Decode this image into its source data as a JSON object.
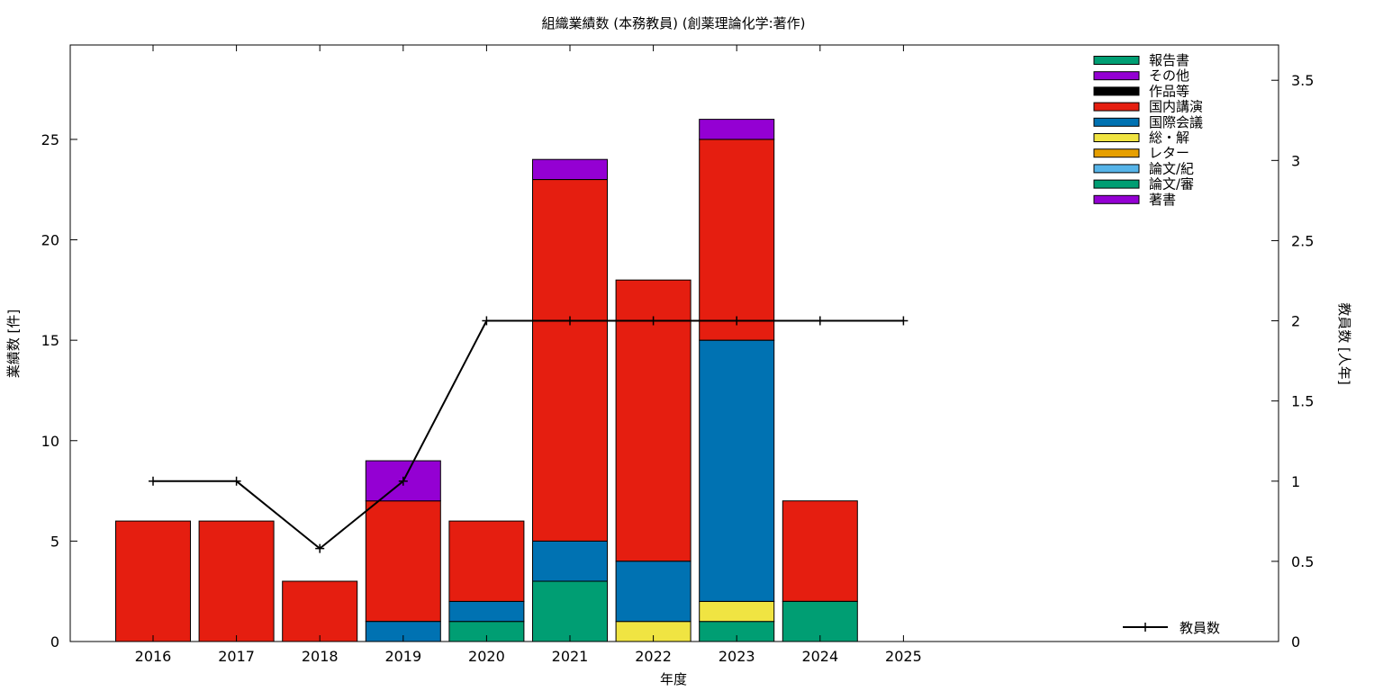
{
  "chart_data": {
    "type": "bar",
    "stacked": true,
    "title": "組織業績数 (本務教員) (創薬理論化学:著作)",
    "xlabel": "年度",
    "ylabel": "業績数 [件]",
    "y2label": "教員数 [人年]",
    "categories": [
      "2016",
      "2017",
      "2018",
      "2019",
      "2020",
      "2021",
      "2022",
      "2023",
      "2024",
      "2025"
    ],
    "ylim": [
      0,
      29.7
    ],
    "y_ticks": [
      0,
      5,
      10,
      15,
      20,
      25
    ],
    "y2lim": [
      0,
      3.72
    ],
    "y2_ticks": [
      0,
      0.5,
      1,
      1.5,
      2,
      2.5,
      3,
      3.5
    ],
    "series": [
      {
        "name": "著書",
        "color": "#9400d3",
        "values": [
          0,
          0,
          0,
          0,
          0,
          0,
          0,
          0,
          0,
          0
        ]
      },
      {
        "name": "論文/審",
        "color": "#009e73",
        "values": [
          0,
          0,
          0,
          0,
          0,
          0,
          0,
          0,
          0,
          0
        ]
      },
      {
        "name": "論文/紀",
        "color": "#56b4e9",
        "values": [
          0,
          0,
          0,
          0,
          0,
          0,
          0,
          0,
          0,
          0
        ]
      },
      {
        "name": "レター",
        "color": "#e69f00",
        "values": [
          0,
          0,
          0,
          0,
          0,
          0,
          0,
          0,
          0,
          0
        ]
      },
      {
        "name": "総・解",
        "color": "#f0e442",
        "values": [
          0,
          0,
          0,
          0,
          0,
          0,
          1,
          1,
          0,
          0
        ]
      },
      {
        "name": "国際会議",
        "color": "#0072b2",
        "values": [
          0,
          0,
          0,
          1,
          1,
          2,
          3,
          13,
          0,
          0
        ]
      },
      {
        "name": "国内講演",
        "color": "#e51e10",
        "values": [
          6,
          6,
          3,
          6,
          4,
          18,
          14,
          10,
          5,
          0
        ]
      },
      {
        "name": "作品等",
        "color": "#000000",
        "values": [
          0,
          0,
          0,
          0,
          0,
          0,
          0,
          0,
          0,
          0
        ]
      },
      {
        "name": "その他",
        "color": "#9400d3",
        "values": [
          0,
          0,
          0,
          2,
          0,
          1,
          0,
          1,
          0,
          0
        ]
      },
      {
        "name": "報告書",
        "color": "#009e73",
        "values": [
          0,
          0,
          0,
          0,
          1,
          3,
          0,
          1,
          2,
          0
        ]
      }
    ],
    "stack_order": [
      "報告書",
      "総・解",
      "国際会議",
      "国内講演",
      "その他"
    ],
    "legend_order": [
      "報告書",
      "その他",
      "作品等",
      "国内講演",
      "国際会議",
      "総・解",
      "レター",
      "論文/紀",
      "論文/審",
      "著書"
    ],
    "line_series": {
      "name": "教員数",
      "color": "#000000",
      "axis": "y2",
      "values": [
        1,
        1,
        0.58,
        1,
        2,
        2,
        2,
        2,
        2,
        2
      ]
    },
    "legend_position": "top-right",
    "grid": false
  }
}
